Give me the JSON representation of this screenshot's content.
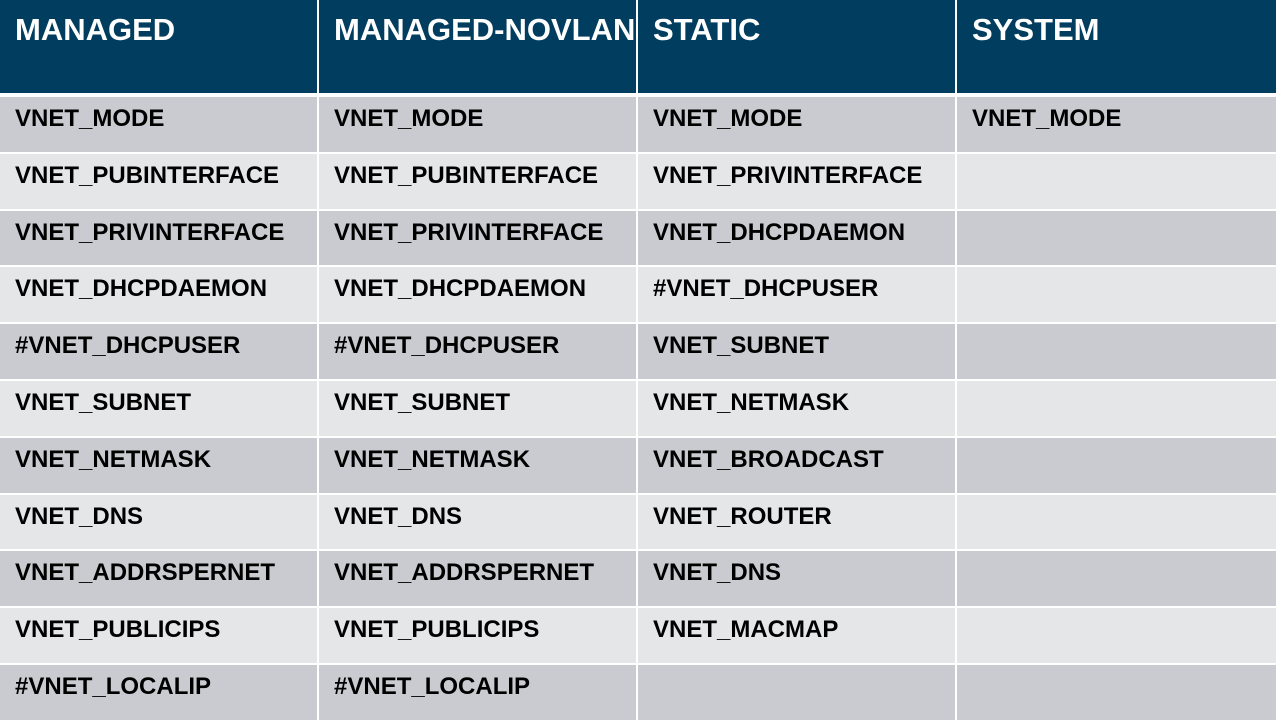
{
  "table": {
    "headers": [
      "MANAGED",
      "MANAGED-NOVLAN",
      "STATIC",
      "SYSTEM"
    ],
    "rows": [
      [
        "VNET_MODE",
        "VNET_MODE",
        "VNET_MODE",
        "VNET_MODE"
      ],
      [
        "VNET_PUBINTERFACE",
        "VNET_PUBINTERFACE",
        "VNET_PRIVINTERFACE",
        ""
      ],
      [
        "VNET_PRIVINTERFACE",
        "VNET_PRIVINTERFACE",
        "VNET_DHCPDAEMON",
        ""
      ],
      [
        "VNET_DHCPDAEMON",
        "VNET_DHCPDAEMON",
        "#VNET_DHCPUSER",
        ""
      ],
      [
        "#VNET_DHCPUSER",
        "#VNET_DHCPUSER",
        "VNET_SUBNET",
        ""
      ],
      [
        "VNET_SUBNET",
        "VNET_SUBNET",
        "VNET_NETMASK",
        ""
      ],
      [
        "VNET_NETMASK",
        "VNET_NETMASK",
        "VNET_BROADCAST",
        ""
      ],
      [
        "VNET_DNS",
        "VNET_DNS",
        "VNET_ROUTER",
        ""
      ],
      [
        "VNET_ADDRSPERNET",
        "VNET_ADDRSPERNET",
        "VNET_DNS",
        ""
      ],
      [
        "VNET_PUBLICIPS",
        "VNET_PUBLICIPS",
        "VNET_MACMAP",
        ""
      ],
      [
        "#VNET_LOCALIP",
        "#VNET_LOCALIP",
        "",
        ""
      ]
    ]
  },
  "colors": {
    "header_bg": "#003d5e",
    "row_dark": "#cacbd0",
    "row_light": "#e5e6e8"
  }
}
